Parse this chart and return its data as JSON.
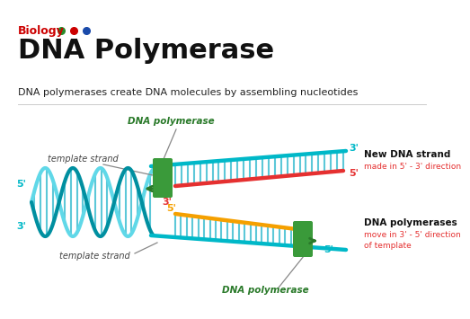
{
  "title": "DNA Polymerase",
  "biology_label": "Biology",
  "subtitle": "DNA polymerases create DNA molecules by assembling nucleotides",
  "bg_color": "#ffffff",
  "title_color": "#111111",
  "biology_color": "#cc0000",
  "subtitle_color": "#222222",
  "teal_color": "#00b8c8",
  "teal_dark": "#008fa0",
  "teal_light": "#60d8e8",
  "red_strand_color": "#e53030",
  "orange_strand_color": "#f5a000",
  "green_enzyme_color": "#2a7a2a",
  "annotation_color": "#111111",
  "red_annotation_color": "#e53030",
  "cyan_label_color": "#00aacc",
  "rung_color": "#5cc8d8",
  "dots": [
    {
      "color": "#2a8a2a"
    },
    {
      "color": "#cc0000"
    },
    {
      "color": "#1a4aaa"
    }
  ],
  "right_text_1_bold": "New DNA strand",
  "right_text_1_red": "made in 5' - 3' direction",
  "right_text_2_bold": "DNA polymerases",
  "right_text_2_red": "move in 3' - 5' direction",
  "right_text_2_red2": "of template"
}
